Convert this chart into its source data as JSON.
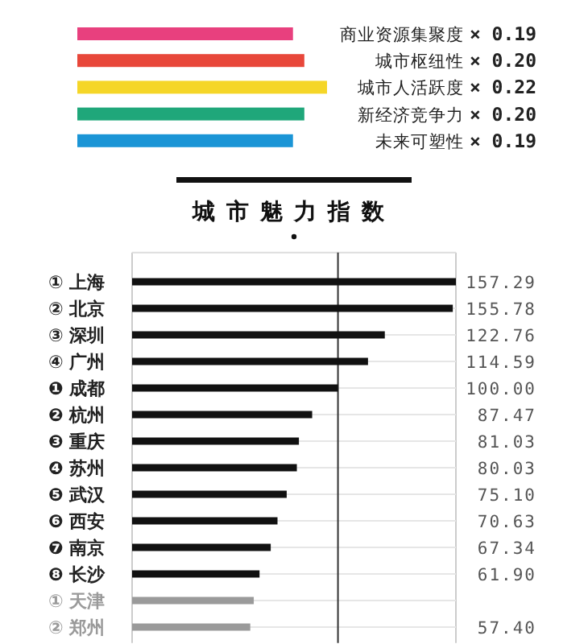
{
  "chart_data": [
    {
      "type": "bar",
      "orientation": "horizontal",
      "categories": [
        "商业资源集聚度",
        "城市枢纽性",
        "城市人活跃度",
        "新经济竞争力",
        "未来可塑性"
      ],
      "values": [
        0.19,
        0.2,
        0.22,
        0.2,
        0.19
      ],
      "colors": [
        "#e8407e",
        "#e8473a",
        "#f5d628",
        "#1fa77a",
        "#1b95d6"
      ],
      "value_labels": [
        "× 0.19",
        "× 0.20",
        "× 0.22",
        "× 0.20",
        "× 0.19"
      ],
      "xlim": [
        0,
        0.22
      ],
      "tick_labels": "y",
      "grid": false
    },
    {
      "type": "bar",
      "orientation": "horizontal",
      "title": "城市魅力指数",
      "categories": [
        "① 上海",
        "② 北京",
        "③ 深圳",
        "④ 广州",
        "❶ 成都",
        "❷ 杭州",
        "❸ 重庆",
        "❹ 苏州",
        "❺ 武汉",
        "❻ 西安",
        "❼ 南京",
        "❽ 长沙",
        "① 天津",
        "② 郑州"
      ],
      "values": [
        157.29,
        155.78,
        122.76,
        114.59,
        100.0,
        87.47,
        81.03,
        80.03,
        75.1,
        70.63,
        67.34,
        61.9,
        59.1,
        57.4
      ],
      "colors": [
        "#111111",
        "#111111",
        "#111111",
        "#111111",
        "#111111",
        "#111111",
        "#111111",
        "#111111",
        "#111111",
        "#111111",
        "#111111",
        "#111111",
        "#9a9a9a",
        "#9a9a9a"
      ],
      "value_labels": [
        "157.29",
        "155.78",
        "122.76",
        "114.59",
        "100.00",
        "87.47",
        "81.03",
        "80.03",
        "75.10",
        "70.63",
        "67.34",
        "61.90",
        null,
        "57.40"
      ],
      "xlim": [
        0,
        157.29
      ],
      "tick_labels": "y",
      "grid": "y",
      "ref_lines": [
        {
          "axis": "x",
          "value": 100,
          "color": "#333333"
        }
      ]
    }
  ]
}
